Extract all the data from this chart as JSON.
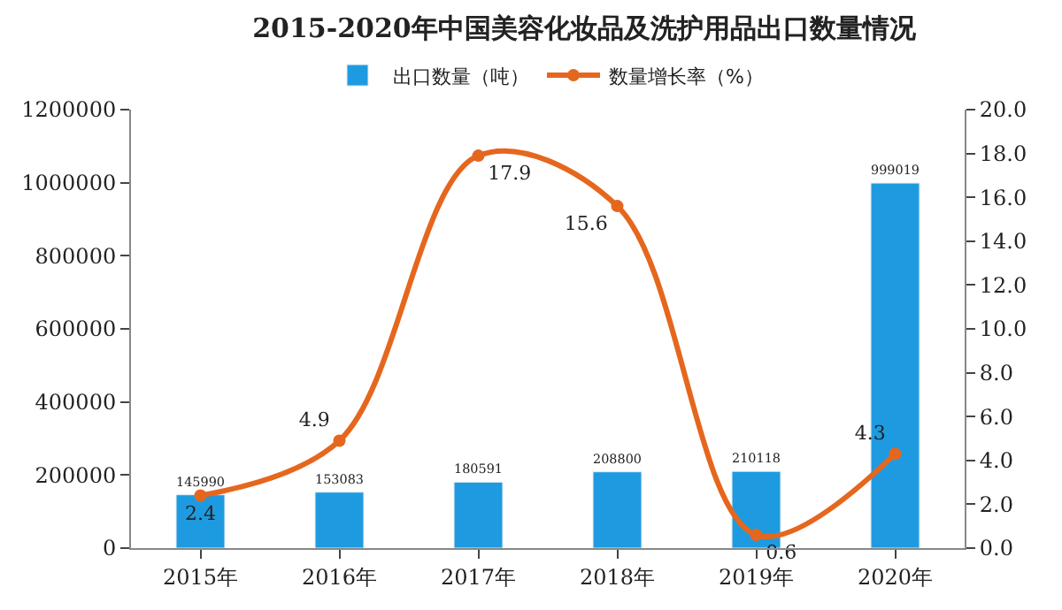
{
  "chart_data": {
    "type": "bar",
    "title": "2015-2020年中国美容化妆品及洗护用品出口数量情况",
    "categories": [
      "2015年",
      "2016年",
      "2017年",
      "2018年",
      "2019年",
      "2020年"
    ],
    "series": [
      {
        "name": "出口数量（吨）",
        "color": "#1e9be0",
        "values": [
          145990,
          153083,
          180591,
          208800,
          210118,
          999019
        ]
      },
      {
        "name": "数量增长率（%）",
        "type": "line",
        "axis": "y2",
        "color": "#e5671e",
        "values": [
          2.4,
          4.9,
          17.9,
          15.6,
          0.6,
          4.3
        ]
      }
    ],
    "ylim": [
      0,
      1200000
    ],
    "yticks": [
      0,
      200000,
      400000,
      600000,
      800000,
      1000000,
      1200000
    ],
    "y2lim": [
      0,
      20
    ],
    "y2ticks": [
      {
        "value": 0,
        "label": "0.0"
      },
      {
        "value": 2,
        "label": "2.0"
      },
      {
        "value": 4,
        "label": "4.0"
      },
      {
        "value": 6,
        "label": "6.0"
      },
      {
        "value": 8,
        "label": "8.0"
      },
      {
        "value": 10,
        "label": "10.0"
      },
      {
        "value": 12,
        "label": "12.0"
      },
      {
        "value": 14,
        "label": "14.0"
      },
      {
        "value": 16,
        "label": "16.0"
      },
      {
        "value": 18,
        "label": "18.0"
      },
      {
        "value": 20,
        "label": "20.0"
      }
    ],
    "data_labels": true,
    "legend": "top",
    "marker": "circle",
    "line_style": "solid"
  }
}
